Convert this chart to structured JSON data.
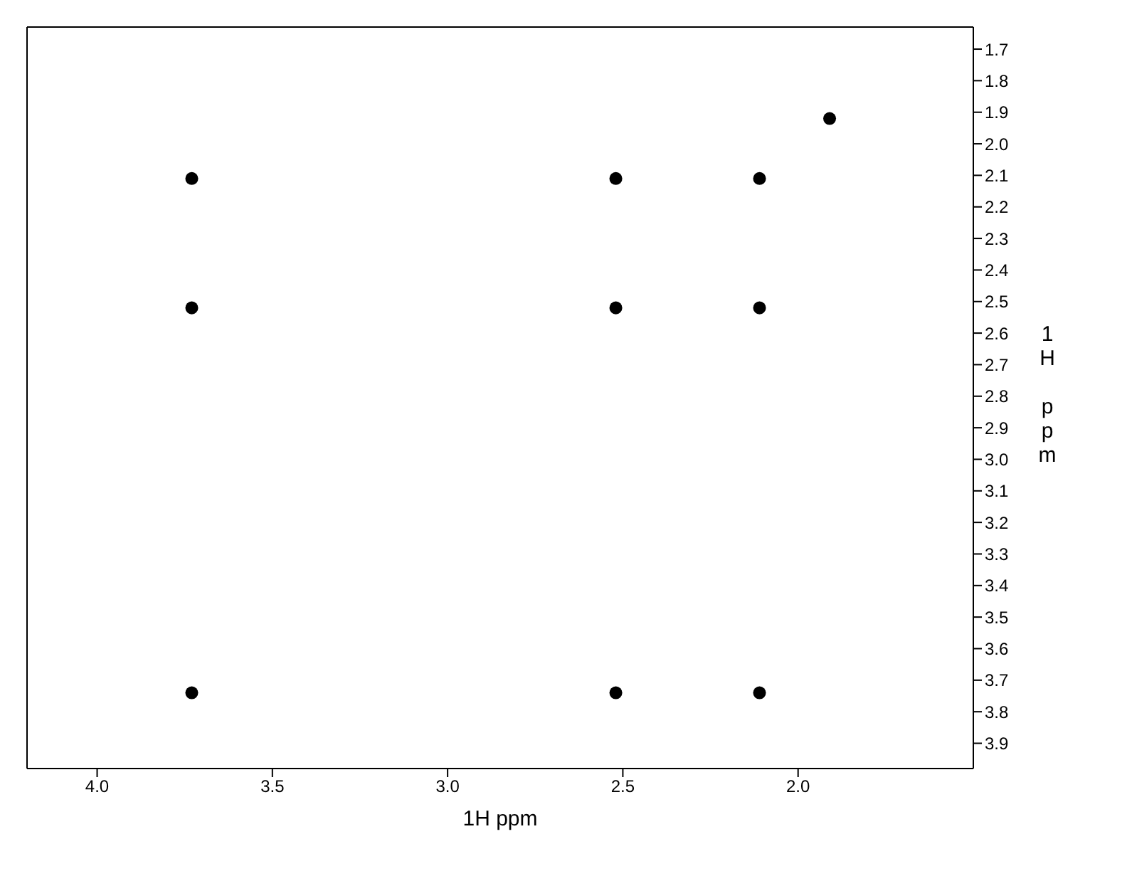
{
  "chart_data": {
    "type": "scatter",
    "xlabel": "1H ppm",
    "ylabel": "1H ppm",
    "xlim": [
      4.2,
      1.5
    ],
    "ylim": [
      3.98,
      1.63
    ],
    "xticks": [
      {
        "value": 4,
        "label": "4.0"
      },
      {
        "value": 3.5,
        "label": "3.5"
      },
      {
        "value": 3,
        "label": "3.0"
      },
      {
        "value": 2.5,
        "label": "2.5"
      },
      {
        "value": 2,
        "label": "2.0"
      }
    ],
    "yticks": [
      {
        "value": 1.7,
        "label": "1.7"
      },
      {
        "value": 1.8,
        "label": "1.8"
      },
      {
        "value": 1.9,
        "label": "1.9"
      },
      {
        "value": 2.0,
        "label": "2.0"
      },
      {
        "value": 2.1,
        "label": "2.1"
      },
      {
        "value": 2.2,
        "label": "2.2"
      },
      {
        "value": 2.3,
        "label": "2.3"
      },
      {
        "value": 2.4,
        "label": "2.4"
      },
      {
        "value": 2.5,
        "label": "2.5"
      },
      {
        "value": 2.6,
        "label": "2.6"
      },
      {
        "value": 2.7,
        "label": "2.7"
      },
      {
        "value": 2.8,
        "label": "2.8"
      },
      {
        "value": 2.9,
        "label": "2.9"
      },
      {
        "value": 3.0,
        "label": "3.0"
      },
      {
        "value": 3.1,
        "label": "3.1"
      },
      {
        "value": 3.2,
        "label": "3.2"
      },
      {
        "value": 3.3,
        "label": "3.3"
      },
      {
        "value": 3.4,
        "label": "3.4"
      },
      {
        "value": 3.5,
        "label": "3.5"
      },
      {
        "value": 3.6,
        "label": "3.6"
      },
      {
        "value": 3.7,
        "label": "3.7"
      },
      {
        "value": 3.8,
        "label": "3.8"
      },
      {
        "value": 3.9,
        "label": "3.9"
      }
    ],
    "x": [
      3.73,
      2.52,
      2.11,
      3.73,
      2.52,
      2.11,
      3.73,
      2.52,
      2.11,
      1.91
    ],
    "series": [
      {
        "color": "#000000",
        "values": [
          2.11,
          2.11,
          2.11,
          2.52,
          2.52,
          2.52,
          3.74,
          3.74,
          3.74,
          1.92
        ]
      }
    ],
    "marker": "circle",
    "legend": false
  }
}
